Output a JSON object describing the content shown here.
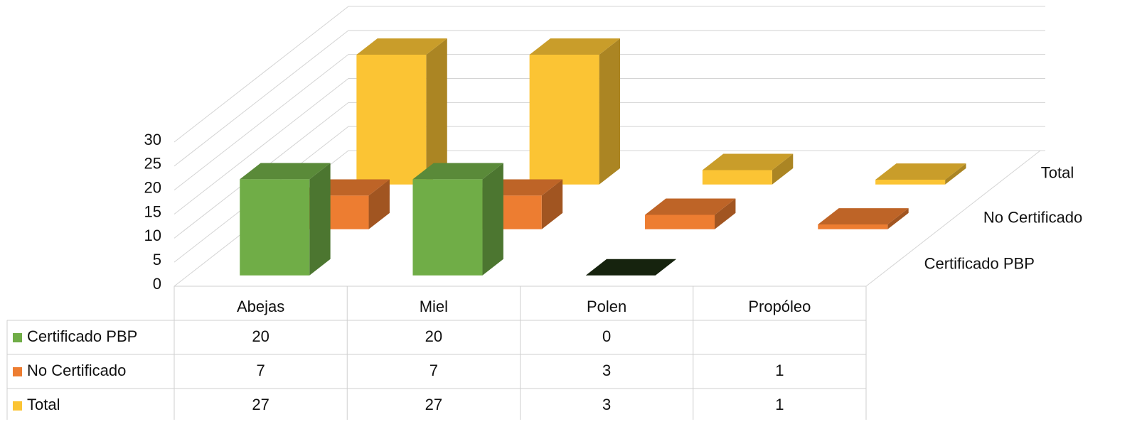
{
  "chart_data": {
    "type": "bar3d",
    "categories": [
      "Abejas",
      "Miel",
      "Polen",
      "Propóleo"
    ],
    "series": [
      {
        "name": "Certificado PBP",
        "color": "#70ad47",
        "values": [
          20,
          20,
          0,
          null
        ]
      },
      {
        "name": "No Certificado",
        "color": "#ed7d31",
        "values": [
          7,
          7,
          3,
          1
        ]
      },
      {
        "name": "Total",
        "color": "#fbc434",
        "values": [
          27,
          27,
          3,
          1
        ]
      }
    ],
    "ylim": [
      0,
      30
    ],
    "yticks": [
      0,
      5,
      10,
      15,
      20,
      25,
      30
    ],
    "grid": true,
    "data_table": true
  }
}
